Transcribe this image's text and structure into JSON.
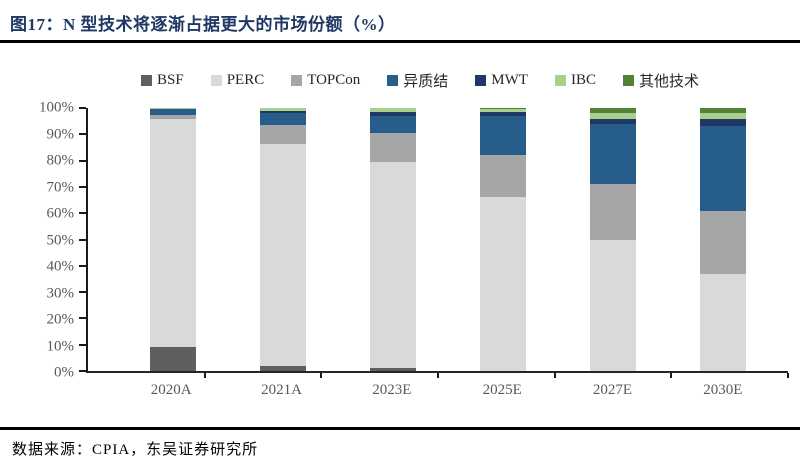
{
  "header": {
    "title": "图17：N 型技术将逐渐占据更大的市场份额（%）"
  },
  "footer": {
    "source": "数据来源：CPIA，东吴证券研究所"
  },
  "chart_data": {
    "type": "bar",
    "stacked": true,
    "title": "N 型技术将逐渐占据更大的市场份额（%）",
    "categories": [
      "2020A",
      "2021A",
      "2023E",
      "2025E",
      "2027E",
      "2030E"
    ],
    "series": [
      {
        "name": "BSF",
        "color": "#5f5f5f",
        "values": [
          9,
          2,
          1,
          0,
          0,
          0
        ]
      },
      {
        "name": "PERC",
        "color": "#d9d9d9",
        "values": [
          87,
          84.5,
          78.5,
          66,
          50,
          37
        ]
      },
      {
        "name": "TOPCon",
        "color": "#a6a6a6",
        "values": [
          1.5,
          7,
          11,
          16,
          21,
          24
        ]
      },
      {
        "name": "异质结",
        "color": "#275d8b",
        "values": [
          2,
          4.5,
          6.5,
          15,
          23,
          32
        ]
      },
      {
        "name": "MWT",
        "color": "#1f3864",
        "values": [
          0.3,
          1,
          1.5,
          1.5,
          2,
          3
        ]
      },
      {
        "name": "IBC",
        "color": "#a9d08e",
        "values": [
          0.2,
          1,
          1.5,
          1,
          2,
          2
        ]
      },
      {
        "name": "其他技术",
        "color": "#548235",
        "values": [
          0,
          0,
          0,
          0.5,
          2,
          2
        ]
      }
    ],
    "xlabel": "",
    "ylabel": "",
    "ylim": [
      0,
      100
    ],
    "yticks": [
      "0%",
      "10%",
      "20%",
      "30%",
      "40%",
      "50%",
      "60%",
      "70%",
      "80%",
      "90%",
      "100%"
    ],
    "grid": false,
    "legend_position": "top"
  }
}
